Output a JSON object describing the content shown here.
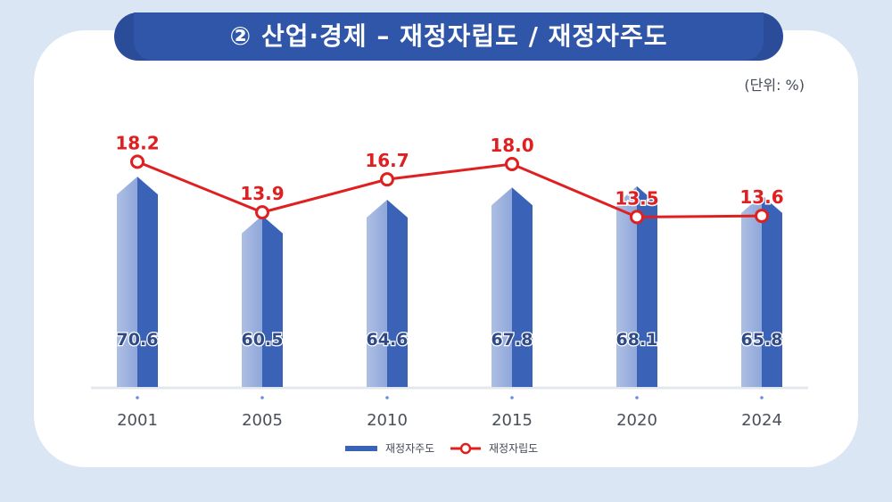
{
  "title": "② 산업·경제 – 재정자립도 / 재정자주도",
  "unit": "(단위: %)",
  "colors": {
    "background": "#dbe6f4",
    "title_bar": "#2a4c99",
    "bar_dark": "#3a63b8",
    "bar_light": "#aebfe3",
    "line": "#e02020",
    "bar_label": "#2f4a86",
    "axis_label": "#4a4f58"
  },
  "chart_data": {
    "type": "bar",
    "categories": [
      "2001",
      "2005",
      "2010",
      "2015",
      "2020",
      "2024"
    ],
    "series": [
      {
        "name": "재정자주도",
        "type": "bar",
        "values": [
          70.6,
          60.5,
          64.6,
          67.8,
          68.1,
          65.8
        ]
      },
      {
        "name": "재정자립도",
        "type": "line",
        "values": [
          18.2,
          13.9,
          16.7,
          18.0,
          13.5,
          13.6
        ]
      }
    ],
    "legend": "bottom-center",
    "grid": false
  }
}
